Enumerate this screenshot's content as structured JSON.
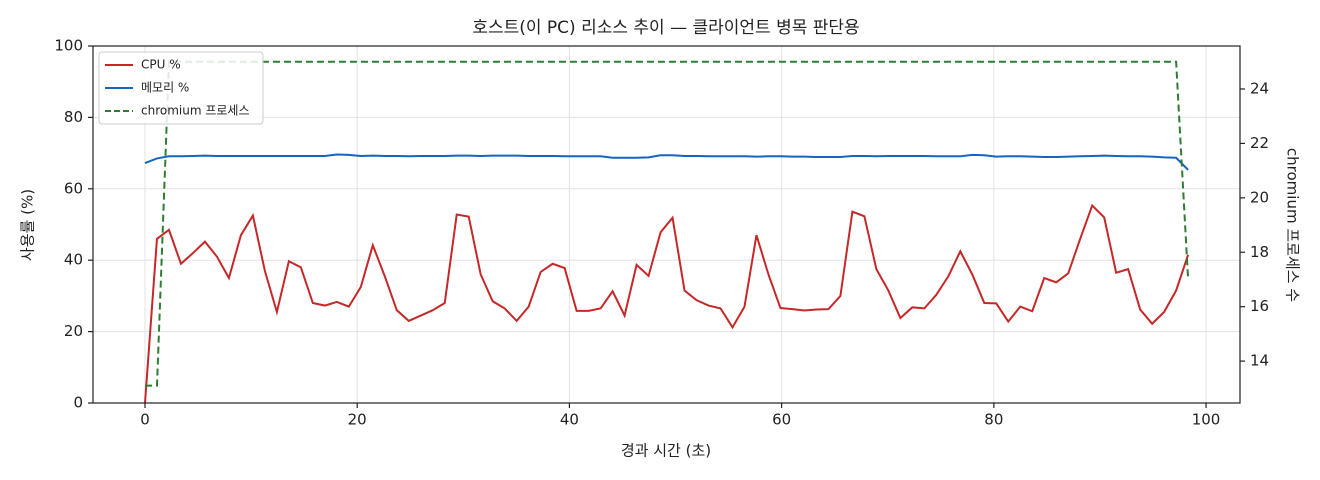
{
  "chart_data": {
    "type": "line",
    "title": "호스트(이 PC) 리소스 추이 — 클라이언트 병목 판단용",
    "x_label": "경과 시간 (초)",
    "y_label": "사용률 (%)",
    "y2_label": "chromium 프로세스 수",
    "x": [
      0,
      1.13,
      2.26,
      3.39,
      4.52,
      5.65,
      6.78,
      7.91,
      9.04,
      10.17,
      11.3,
      12.43,
      13.56,
      14.69,
      15.82,
      16.95,
      18.08,
      19.21,
      20.34,
      21.47,
      22.6,
      23.73,
      24.86,
      25.99,
      27.12,
      28.25,
      29.38,
      30.51,
      31.64,
      32.77,
      33.9,
      35.03,
      36.16,
      37.29,
      38.42,
      39.55,
      40.68,
      41.81,
      42.94,
      44.07,
      45.2,
      46.33,
      47.46,
      48.59,
      49.72,
      50.85,
      51.98,
      53.11,
      54.24,
      55.37,
      56.5,
      57.63,
      58.76,
      59.89,
      61.02,
      62.15,
      63.28,
      64.41,
      65.54,
      66.67,
      67.8,
      68.93,
      70.06,
      71.19,
      72.32,
      73.45,
      74.58,
      75.71,
      76.84,
      77.97,
      79.1,
      80.23,
      81.36,
      82.49,
      83.62,
      84.75,
      85.88,
      87.01,
      88.14,
      89.27,
      90.4,
      91.53,
      92.66,
      93.79,
      94.92,
      96.05,
      97.18,
      98.31
    ],
    "series": [
      {
        "name": "CPU %",
        "color": "#c62828",
        "linestyle": "solid",
        "axis": "y",
        "values": [
          0,
          46,
          48.5,
          39,
          42,
          45.2,
          41,
          35,
          47,
          52.5,
          37,
          25.5,
          39.7,
          38,
          28,
          27.3,
          28.3,
          27,
          32.5,
          44.2,
          35.5,
          26,
          23,
          24.5,
          26,
          28,
          52.8,
          52.2,
          36,
          28.5,
          26.5,
          23,
          27,
          36.7,
          39,
          37.8,
          25.8,
          25.8,
          26.5,
          31.3,
          24.5,
          38.7,
          35.6,
          47.8,
          51.9,
          31.5,
          28.8,
          27.3,
          26.5,
          21.2,
          27,
          47,
          36,
          26.6,
          26.3,
          25.9,
          26.2,
          26.3,
          30,
          53.6,
          52.3,
          37.5,
          31.5,
          23.8,
          26.8,
          26.5,
          30.3,
          35.5,
          42.5,
          36,
          28,
          27.9,
          22.8,
          27,
          25.7,
          35,
          33.8,
          36.3,
          46,
          55.3,
          52,
          36.5,
          37.5,
          26.2,
          22.2,
          25.5,
          31.5,
          41.5
        ]
      },
      {
        "name": "메모리 %",
        "color": "#1565c0",
        "linestyle": "solid",
        "axis": "y",
        "values": [
          67.2,
          68.5,
          69.1,
          69.1,
          69.2,
          69.3,
          69.2,
          69.2,
          69.2,
          69.2,
          69.2,
          69.2,
          69.2,
          69.2,
          69.2,
          69.2,
          69.6,
          69.5,
          69.2,
          69.3,
          69.2,
          69.2,
          69.1,
          69.2,
          69.2,
          69.2,
          69.3,
          69.3,
          69.2,
          69.3,
          69.3,
          69.3,
          69.2,
          69.2,
          69.2,
          69.1,
          69.1,
          69.1,
          69.1,
          68.7,
          68.7,
          68.7,
          68.8,
          69.4,
          69.4,
          69.2,
          69.2,
          69.1,
          69.1,
          69.1,
          69.1,
          69,
          69.1,
          69.1,
          69,
          69,
          68.9,
          68.9,
          68.9,
          69.2,
          69.2,
          69.1,
          69.2,
          69.2,
          69.2,
          69.2,
          69.1,
          69.1,
          69.1,
          69.5,
          69.4,
          69,
          69.1,
          69.1,
          69,
          68.9,
          68.9,
          69,
          69.1,
          69.2,
          69.3,
          69.2,
          69.1,
          69.1,
          69,
          68.8,
          68.7,
          65.3
        ]
      },
      {
        "name": "chromium 프로세스",
        "color": "#2e7d32",
        "linestyle": "dashed",
        "axis": "y2",
        "values": [
          13.1,
          13.1,
          25,
          25,
          25,
          25,
          25,
          25,
          25,
          25,
          25,
          25,
          25,
          25,
          25,
          25,
          25,
          25,
          25,
          25,
          25,
          25,
          25,
          25,
          25,
          25,
          25,
          25,
          25,
          25,
          25,
          25,
          25,
          25,
          25,
          25,
          25,
          25,
          25,
          25,
          25,
          25,
          25,
          25,
          25,
          25,
          25,
          25,
          25,
          25,
          25,
          25,
          25,
          25,
          25,
          25,
          25,
          25,
          25,
          25,
          25,
          25,
          25,
          25,
          25,
          25,
          25,
          25,
          25,
          25,
          25,
          25,
          25,
          25,
          25,
          25,
          25,
          25,
          25,
          25,
          25,
          25,
          25,
          25,
          25,
          25,
          25,
          17
        ]
      }
    ],
    "xlim": [
      -4.9,
      103.2
    ],
    "xticks": [
      0,
      20,
      40,
      60,
      80,
      100
    ],
    "ylim": [
      0,
      100
    ],
    "yticks": [
      0,
      20,
      40,
      60,
      80,
      100
    ],
    "y2lim": [
      12.46,
      25.58
    ],
    "y2ticks": [
      14,
      16,
      18,
      20,
      22,
      24
    ],
    "grid": true,
    "legend": "upper-left"
  }
}
